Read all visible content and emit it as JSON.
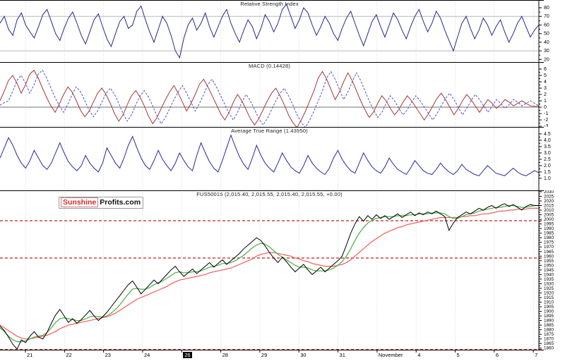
{
  "logo": {
    "part1": "Sunshine",
    "part2": "Profits.com",
    "part1_color": "#d42a2a",
    "part2_color": "#111111"
  },
  "colors": {
    "rsi_line": "#28288e",
    "macd_line": "#a03a3a",
    "signal_line": "#5050c8",
    "atr_line": "#2828a0",
    "price_line": "#000000",
    "ma_fast": "#44b044",
    "ma_slow": "#f25c5c",
    "level_line": "#c83232",
    "gridline_h": "#b8b8b8",
    "gridline_v": "#d6d6d6",
    "axis": "#000000"
  },
  "chart_data": [
    {
      "type": "line",
      "name": "rsi",
      "title": "Relative Strength Index",
      "xlabel": "",
      "ylabel": "",
      "ylim": [
        17,
        89
      ],
      "yticks": [
        80,
        70,
        60,
        50,
        40,
        30,
        20
      ],
      "gridlines_h": [
        70,
        30
      ],
      "legend": "none",
      "series": [
        {
          "name": "rsi-line",
          "color": "#28288e",
          "width": 1,
          "values": [
            62,
            70,
            55,
            48,
            66,
            74,
            60,
            52,
            45,
            58,
            72,
            78,
            64,
            50,
            42,
            56,
            68,
            75,
            62,
            48,
            38,
            52,
            66,
            73,
            58,
            44,
            35,
            50,
            64,
            70,
            56,
            60,
            76,
            82,
            66,
            52,
            40,
            55,
            70,
            62,
            48,
            30,
            22,
            45,
            60,
            68,
            54,
            62,
            74,
            58,
            46,
            58,
            70,
            78,
            62,
            50,
            40,
            54,
            66,
            58,
            44,
            56,
            72,
            64,
            52,
            62,
            78,
            84,
            70,
            56,
            66,
            80,
            74,
            60,
            48,
            58,
            70,
            62,
            50,
            42,
            56,
            68,
            76,
            62,
            48,
            36,
            50,
            64,
            72,
            58,
            46,
            60,
            74,
            66,
            54,
            44,
            58,
            70,
            78,
            64,
            52,
            62,
            76,
            68,
            54,
            42,
            30,
            46,
            62,
            70,
            56,
            44,
            54,
            68,
            60,
            48,
            58,
            66,
            52,
            40,
            50,
            62,
            70,
            58,
            46,
            54,
            60
          ]
        }
      ]
    },
    {
      "type": "line",
      "name": "macd",
      "title": "MACD (0.14428)",
      "xlabel": "",
      "ylabel": "",
      "ylim": [
        -3.1,
        7.1
      ],
      "yticks": [
        6,
        5,
        4,
        3,
        2,
        1,
        0,
        -1,
        -2,
        -3
      ],
      "gridlines_h": [
        0
      ],
      "legend": "none",
      "series": [
        {
          "name": "macd-signal-line",
          "color": "#5050c8",
          "width": 1,
          "dash": true,
          "values": [
            0.3,
            0.7,
            1.0,
            2.5,
            4.2,
            5.0,
            3.8,
            2.2,
            3.5,
            5.2,
            5.8,
            4.6,
            3.0,
            1.5,
            0.2,
            -0.8,
            0.5,
            2.0,
            3.2,
            2.4,
            1.0,
            -0.5,
            -1.5,
            -0.6,
            0.8,
            2.2,
            3.0,
            2.0,
            0.6,
            -1.0,
            -2.2,
            -1.2,
            0.4,
            1.8,
            2.6,
            1.6,
            0.2,
            -1.4,
            -2.6,
            -1.6,
            -0.2,
            1.2,
            2.4,
            3.4,
            2.2,
            0.8,
            -0.6,
            0.6,
            2.0,
            3.6,
            4.4,
            3.2,
            1.8,
            0.4,
            -1.0,
            -2.0,
            -0.8,
            0.8,
            2.0,
            1.0,
            -0.4,
            -1.8,
            -2.8,
            -1.8,
            -0.4,
            1.0,
            2.2,
            3.0,
            1.8,
            0.4,
            -1.2,
            -2.4,
            -3.2,
            -2.0,
            -0.6,
            1.0,
            2.6,
            4.6,
            5.6,
            4.4,
            2.8,
            1.2,
            2.4,
            4.0,
            5.4,
            4.2,
            2.6,
            1.0,
            -0.4,
            -1.6,
            -0.8,
            0.6,
            1.8,
            1.0,
            -0.2,
            -1.2,
            -0.4,
            0.8,
            1.8,
            1.0,
            0.0,
            -1.0,
            -2.0,
            -1.0,
            0.2,
            1.4,
            2.2,
            1.2,
            0.0,
            -1.2,
            -0.2,
            1.0,
            2.0,
            1.2,
            0.2,
            -0.8,
            0.2,
            1.2,
            0.6,
            -0.2,
            0.4,
            1.2,
            0.8,
            0.2,
            0.6,
            1.0,
            0.6,
            0.2
          ]
        },
        {
          "name": "macd-line",
          "color": "#a03a3a",
          "width": 1,
          "values": [
            1.0,
            2.5,
            4.2,
            5.0,
            3.8,
            2.2,
            3.5,
            5.2,
            5.8,
            4.6,
            3.0,
            1.5,
            0.2,
            -0.8,
            0.5,
            2.0,
            3.2,
            2.4,
            1.0,
            -0.5,
            -1.5,
            -0.6,
            0.8,
            2.2,
            3.0,
            2.0,
            0.6,
            -1.0,
            -2.2,
            -1.2,
            0.4,
            1.8,
            2.6,
            1.6,
            0.2,
            -1.4,
            -2.6,
            -1.6,
            -0.2,
            1.2,
            2.4,
            3.4,
            2.2,
            0.8,
            -0.6,
            0.6,
            2.0,
            3.6,
            4.4,
            3.2,
            1.8,
            0.4,
            -1.0,
            -2.0,
            -0.8,
            0.8,
            2.0,
            1.0,
            -0.4,
            -1.8,
            -2.8,
            -1.8,
            -0.4,
            1.0,
            2.2,
            3.0,
            1.8,
            0.4,
            -1.2,
            -2.4,
            -3.2,
            -2.0,
            -0.6,
            1.0,
            2.6,
            4.6,
            5.6,
            4.4,
            2.8,
            1.2,
            2.4,
            4.0,
            5.4,
            4.2,
            2.6,
            1.0,
            -0.4,
            -1.6,
            -0.8,
            0.6,
            1.8,
            1.0,
            -0.2,
            -1.2,
            -0.4,
            0.8,
            1.8,
            1.0,
            0.0,
            -1.0,
            -2.0,
            -1.0,
            0.2,
            1.4,
            2.2,
            1.2,
            0.0,
            -1.2,
            -0.2,
            1.0,
            2.0,
            1.2,
            0.2,
            -0.8,
            0.2,
            1.2,
            0.6,
            -0.2,
            0.4,
            1.2,
            0.8,
            0.2,
            0.6,
            1.0,
            0.6,
            0.2,
            0.14,
            0.14
          ]
        }
      ]
    },
    {
      "type": "line",
      "name": "atr",
      "title": "Average True Range (1.43950)",
      "xlabel": "",
      "ylabel": "",
      "ylim": [
        0.05,
        5.05
      ],
      "yticks": [
        4.5,
        4.0,
        3.5,
        3.0,
        2.5,
        2.0,
        1.5,
        1.0
      ],
      "ytick_labels": [
        "4.5",
        "4.0",
        "3.5",
        "3.0",
        "2.5",
        "2.0",
        "1.5",
        "1.0"
      ],
      "gridlines_h": [],
      "legend": "none",
      "series": [
        {
          "name": "atr-line",
          "color": "#2828a0",
          "width": 1,
          "values": [
            2.6,
            3.4,
            4.2,
            3.6,
            2.8,
            2.2,
            1.8,
            2.4,
            3.2,
            2.6,
            2.0,
            1.7,
            2.2,
            3.0,
            3.8,
            3.0,
            2.3,
            1.9,
            1.6,
            2.0,
            2.8,
            2.2,
            1.8,
            1.5,
            2.2,
            3.4,
            2.8,
            2.2,
            1.8,
            2.6,
            3.6,
            4.3,
            3.4,
            2.6,
            2.0,
            1.7,
            2.4,
            3.2,
            2.5,
            2.0,
            1.6,
            2.2,
            3.0,
            2.4,
            1.9,
            1.6,
            2.8,
            3.8,
            3.0,
            2.3,
            1.8,
            1.5,
            2.4,
            3.4,
            4.4,
            3.5,
            2.7,
            2.1,
            1.7,
            2.6,
            3.6,
            2.8,
            2.2,
            1.8,
            1.5,
            2.2,
            3.0,
            2.4,
            1.9,
            1.6,
            1.4,
            2.0,
            2.8,
            2.2,
            1.8,
            1.5,
            1.3,
            1.8,
            2.6,
            3.2,
            2.5,
            2.0,
            1.6,
            1.4,
            2.2,
            3.0,
            2.4,
            1.9,
            1.6,
            1.4,
            1.9,
            2.6,
            2.1,
            1.7,
            1.5,
            1.3,
            1.8,
            2.4,
            2.0,
            1.6,
            1.4,
            1.3,
            1.7,
            2.2,
            1.8,
            1.5,
            1.3,
            1.6,
            2.1,
            1.7,
            1.5,
            1.3,
            1.2,
            1.6,
            2.0,
            1.7,
            1.4,
            1.3,
            1.2,
            1.5,
            1.8,
            1.5,
            1.3,
            1.2,
            1.4,
            1.6,
            1.44
          ]
        }
      ]
    },
    {
      "type": "line",
      "name": "price",
      "title": "FUS50015 (2,015.40, 2,015.55, 2,015.40, 2,015.55, +0.00)",
      "xlabel": "",
      "ylabel": "",
      "ylim": [
        1857.5,
        2031.5
      ],
      "yticks": [
        2030,
        2025,
        2020,
        2015,
        2010,
        2005,
        2000,
        1995,
        1990,
        1985,
        1980,
        1975,
        1970,
        1965,
        1960,
        1955,
        1950,
        1945,
        1940,
        1935,
        1930,
        1925,
        1920,
        1915,
        1910,
        1905,
        1900,
        1895,
        1890,
        1885,
        1880,
        1875,
        1870,
        1865,
        1860
      ],
      "gridlines_h": [],
      "levels": [
        1998.5,
        1958,
        1858.5
      ],
      "categories": [
        "21",
        "22",
        "23",
        "24",
        "26",
        "28",
        "29",
        "30",
        "31",
        "November",
        "4",
        "5",
        "6",
        "7"
      ],
      "highlight_index": 4,
      "legend": "none",
      "series": [
        {
          "name": "ma-slow-line",
          "color": "#f25c5c",
          "width": 1.2,
          "values": [
            1885,
            1882,
            1879,
            1876,
            1873,
            1871,
            1870,
            1870,
            1871,
            1872,
            1873,
            1874,
            1876,
            1878,
            1881,
            1883,
            1885,
            1886,
            1887,
            1888,
            1889,
            1890,
            1891,
            1892,
            1893,
            1894,
            1896,
            1898,
            1901,
            1904,
            1907,
            1910,
            1913,
            1915,
            1917,
            1919,
            1921,
            1923,
            1925,
            1927,
            1930,
            1932,
            1934,
            1935,
            1936,
            1937,
            1938,
            1939,
            1940,
            1942,
            1943,
            1944,
            1945,
            1946,
            1947,
            1949,
            1951,
            1953,
            1955,
            1957,
            1960,
            1962,
            1963,
            1964,
            1964,
            1963,
            1962,
            1961,
            1960,
            1958,
            1957,
            1955,
            1954,
            1952,
            1951,
            1950,
            1949,
            1949,
            1949,
            1950,
            1951,
            1953,
            1956,
            1960,
            1964,
            1968,
            1972,
            1976,
            1979,
            1982,
            1985,
            1987,
            1989,
            1991,
            1992,
            1994,
            1995,
            1996,
            1997,
            1998,
            1999,
            2000,
            2001,
            2002,
            2002,
            2002,
            2002,
            2002,
            2003,
            2003,
            2004,
            2004,
            2005,
            2006,
            2006,
            2007,
            2008,
            2009,
            2009,
            2010,
            2010,
            2011,
            2011,
            2011,
            2012,
            2012,
            2012
          ]
        },
        {
          "name": "ma-fast-line",
          "color": "#44b044",
          "width": 1.2,
          "values": [
            1882,
            1878,
            1873,
            1869,
            1867,
            1867,
            1868,
            1870,
            1872,
            1873,
            1874,
            1877,
            1882,
            1888,
            1892,
            1893,
            1892,
            1891,
            1890,
            1890,
            1892,
            1894,
            1895,
            1894,
            1894,
            1895,
            1898,
            1902,
            1907,
            1913,
            1919,
            1924,
            1925,
            1924,
            1924,
            1926,
            1929,
            1931,
            1933,
            1936,
            1939,
            1942,
            1943,
            1942,
            1942,
            1943,
            1943,
            1944,
            1946,
            1948,
            1949,
            1950,
            1952,
            1952,
            1953,
            1955,
            1958,
            1961,
            1965,
            1969,
            1972,
            1974,
            1973,
            1970,
            1966,
            1962,
            1959,
            1956,
            1953,
            1950,
            1948,
            1948,
            1947,
            1945,
            1944,
            1944,
            1944,
            1945,
            1947,
            1950,
            1954,
            1960,
            1968,
            1977,
            1985,
            1991,
            1996,
            1999,
            2001,
            2002,
            2003,
            2003,
            2003,
            2004,
            2004,
            2004,
            2005,
            2005,
            2006,
            2006,
            2006,
            2007,
            2007,
            2007,
            2006,
            2003,
            2001,
            2001,
            2003,
            2005,
            2006,
            2007,
            2009,
            2010,
            2011,
            2012,
            2013,
            2013,
            2014,
            2015,
            2015,
            2014,
            2013,
            2013,
            2014,
            2015,
            2015
          ]
        },
        {
          "name": "price-line",
          "color": "#000000",
          "width": 1,
          "values": [
            1884,
            1879,
            1872,
            1864,
            1859,
            1869,
            1866,
            1873,
            1878,
            1872,
            1870,
            1877,
            1887,
            1896,
            1902,
            1895,
            1888,
            1892,
            1887,
            1891,
            1896,
            1901,
            1895,
            1890,
            1894,
            1899,
            1905,
            1911,
            1917,
            1923,
            1929,
            1933,
            1926,
            1919,
            1924,
            1929,
            1934,
            1930,
            1935,
            1940,
            1945,
            1949,
            1943,
            1938,
            1942,
            1946,
            1941,
            1945,
            1949,
            1953,
            1948,
            1952,
            1956,
            1951,
            1955,
            1959,
            1963,
            1968,
            1972,
            1976,
            1980,
            1977,
            1971,
            1964,
            1958,
            1953,
            1959,
            1954,
            1948,
            1943,
            1947,
            1951,
            1945,
            1940,
            1944,
            1948,
            1943,
            1947,
            1951,
            1955,
            1960,
            1972,
            1985,
            1995,
            2003,
            1998,
            2004,
            2000,
            2005,
            2001,
            2004,
            2000,
            2003,
            2006,
            2002,
            2005,
            2008,
            2004,
            2007,
            2005,
            2008,
            2006,
            2009,
            2006,
            2003,
            1988,
            1996,
            2002,
            2005,
            2008,
            2006,
            2009,
            2012,
            2010,
            2013,
            2015,
            2012,
            2015,
            2017,
            2014,
            2016,
            2013,
            2010,
            2014,
            2016,
            2015,
            2015
          ]
        }
      ]
    }
  ]
}
